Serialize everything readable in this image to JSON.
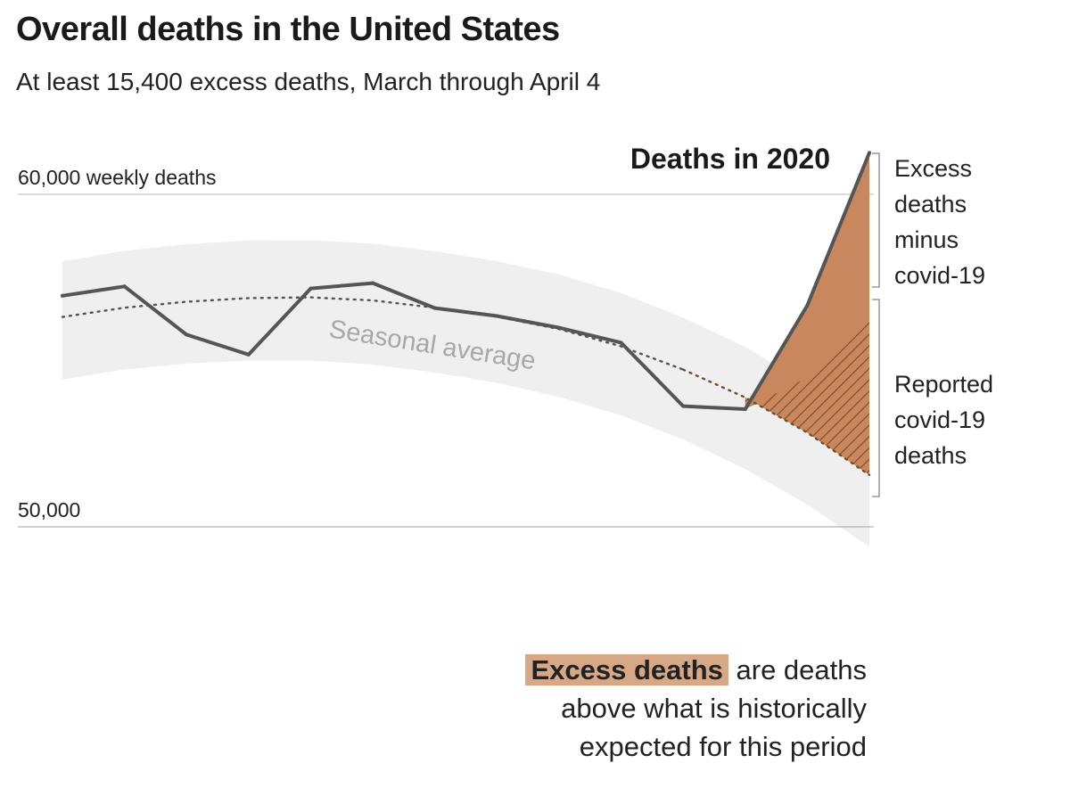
{
  "title": "Overall deaths in the United States",
  "subtitle": "At least 15,400 excess deaths, March through April 4",
  "note": {
    "highlight": "Excess deaths",
    "line1_rest": " are deaths",
    "line2": "above what is historically",
    "line3": "expected for this period"
  },
  "colors": {
    "line": "#555555",
    "excess_fill": "#c8875d",
    "covid_hatch": "#7a4a2c",
    "band": "#efefef",
    "seasonal_dots": "#555555"
  },
  "chart_data": {
    "type": "line",
    "y_tick_labels": [
      "60,000 weekly deaths",
      "50,000"
    ],
    "y_ticks": [
      60000,
      50000
    ],
    "ylim": [
      48800,
      61400
    ],
    "xlim": [
      0,
      13
    ],
    "grid": "horizontal at 50,000 and 60,000",
    "series": [
      {
        "name": "Deaths in 2020",
        "x": [
          0,
          1,
          2,
          3,
          4,
          5,
          6,
          7,
          8,
          9,
          10,
          11,
          12,
          13
        ],
        "values": [
          56950,
          57230,
          55780,
          55180,
          57170,
          57330,
          56580,
          56340,
          55990,
          55540,
          53630,
          53540,
          56660,
          61250
        ]
      },
      {
        "name": "Seasonal average",
        "x": [
          0,
          1,
          2,
          3,
          4,
          5,
          6,
          7,
          8,
          9,
          10,
          11,
          12,
          13
        ],
        "values": [
          56310,
          56590,
          56770,
          56880,
          56900,
          56810,
          56590,
          56320,
          55950,
          55430,
          54730,
          53890,
          52830,
          51560
        ]
      }
    ],
    "seasonal_band": {
      "x": [
        0,
        1,
        2,
        3,
        4,
        5,
        6,
        7,
        8,
        9,
        10,
        11,
        12,
        13
      ],
      "upper": [
        57980,
        58300,
        58500,
        58610,
        58620,
        58520,
        58290,
        57990,
        57590,
        57030,
        56290,
        55410,
        54310,
        53000
      ],
      "lower": [
        54430,
        54730,
        54910,
        55000,
        55000,
        54880,
        54640,
        54330,
        53910,
        53350,
        52630,
        51740,
        50670,
        49400
      ]
    },
    "annotations": {
      "excess_label": [
        "Excess",
        "deaths",
        "minus",
        "covid-19"
      ],
      "covid_label": [
        "Reported",
        "covid-19",
        "deaths"
      ],
      "covid_top": [
        53540,
        54490,
        56400
      ]
    }
  }
}
